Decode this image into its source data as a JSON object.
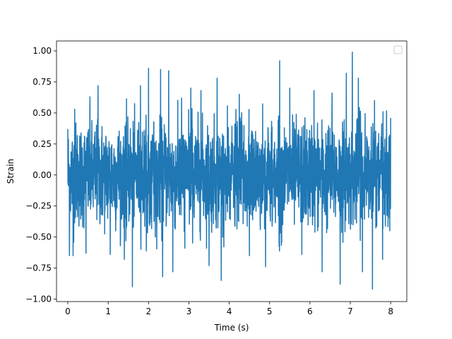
{
  "chart_data": {
    "type": "line",
    "xlabel": "Time (s)",
    "ylabel": "Strain",
    "xlim": [
      -0.28,
      8.4
    ],
    "ylim": [
      -1.02,
      1.08
    ],
    "x_ticks": [
      0,
      1,
      2,
      3,
      4,
      5,
      6,
      7,
      8
    ],
    "x_tick_labels": [
      "0",
      "1",
      "2",
      "3",
      "4",
      "5",
      "6",
      "7",
      "8"
    ],
    "y_ticks": [
      -1.0,
      -0.75,
      -0.5,
      -0.25,
      0.0,
      0.25,
      0.5,
      0.75,
      1.0
    ],
    "y_tick_labels": [
      "−1.00",
      "−0.75",
      "−0.50",
      "−0.25",
      "0.00",
      "0.25",
      "0.50",
      "0.75",
      "1.00"
    ],
    "grid": false,
    "legend": {
      "placement": "top-right",
      "entries": []
    },
    "series": [
      {
        "color": "#1f77b4",
        "x_start": 0.0,
        "x_end": 8.0,
        "typical_upper": 0.45,
        "typical_lower": -0.42,
        "peaks": [
          {
            "x": 0.0,
            "y": 0.37
          },
          {
            "x": 0.04,
            "y": -0.65
          },
          {
            "x": 0.13,
            "y": -0.65
          },
          {
            "x": 0.17,
            "y": 0.53
          },
          {
            "x": 0.45,
            "y": -0.63
          },
          {
            "x": 0.55,
            "y": 0.63
          },
          {
            "x": 0.75,
            "y": 0.72
          },
          {
            "x": 1.05,
            "y": -0.64
          },
          {
            "x": 1.4,
            "y": -0.68
          },
          {
            "x": 1.6,
            "y": -0.9
          },
          {
            "x": 1.8,
            "y": 0.72
          },
          {
            "x": 2.0,
            "y": 0.86
          },
          {
            "x": 2.3,
            "y": 0.85
          },
          {
            "x": 2.5,
            "y": 0.84
          },
          {
            "x": 2.35,
            "y": -0.82
          },
          {
            "x": 2.6,
            "y": -0.78
          },
          {
            "x": 3.05,
            "y": 0.7
          },
          {
            "x": 3.3,
            "y": 0.68
          },
          {
            "x": 3.5,
            "y": -0.73
          },
          {
            "x": 3.7,
            "y": 0.78
          },
          {
            "x": 3.8,
            "y": -0.85
          },
          {
            "x": 4.25,
            "y": 0.65
          },
          {
            "x": 4.5,
            "y": -0.65
          },
          {
            "x": 4.9,
            "y": -0.74
          },
          {
            "x": 5.25,
            "y": 0.92
          },
          {
            "x": 5.5,
            "y": 0.7
          },
          {
            "x": 5.8,
            "y": -0.64
          },
          {
            "x": 6.1,
            "y": 0.68
          },
          {
            "x": 6.3,
            "y": -0.78
          },
          {
            "x": 6.55,
            "y": 0.66
          },
          {
            "x": 6.75,
            "y": -0.88
          },
          {
            "x": 6.9,
            "y": 0.82
          },
          {
            "x": 7.05,
            "y": 0.99
          },
          {
            "x": 7.2,
            "y": 0.78
          },
          {
            "x": 7.3,
            "y": -0.78
          },
          {
            "x": 7.55,
            "y": -0.92
          },
          {
            "x": 7.6,
            "y": 0.6
          },
          {
            "x": 7.8,
            "y": -0.68
          },
          {
            "x": 8.0,
            "y": 0.46
          }
        ]
      }
    ]
  }
}
